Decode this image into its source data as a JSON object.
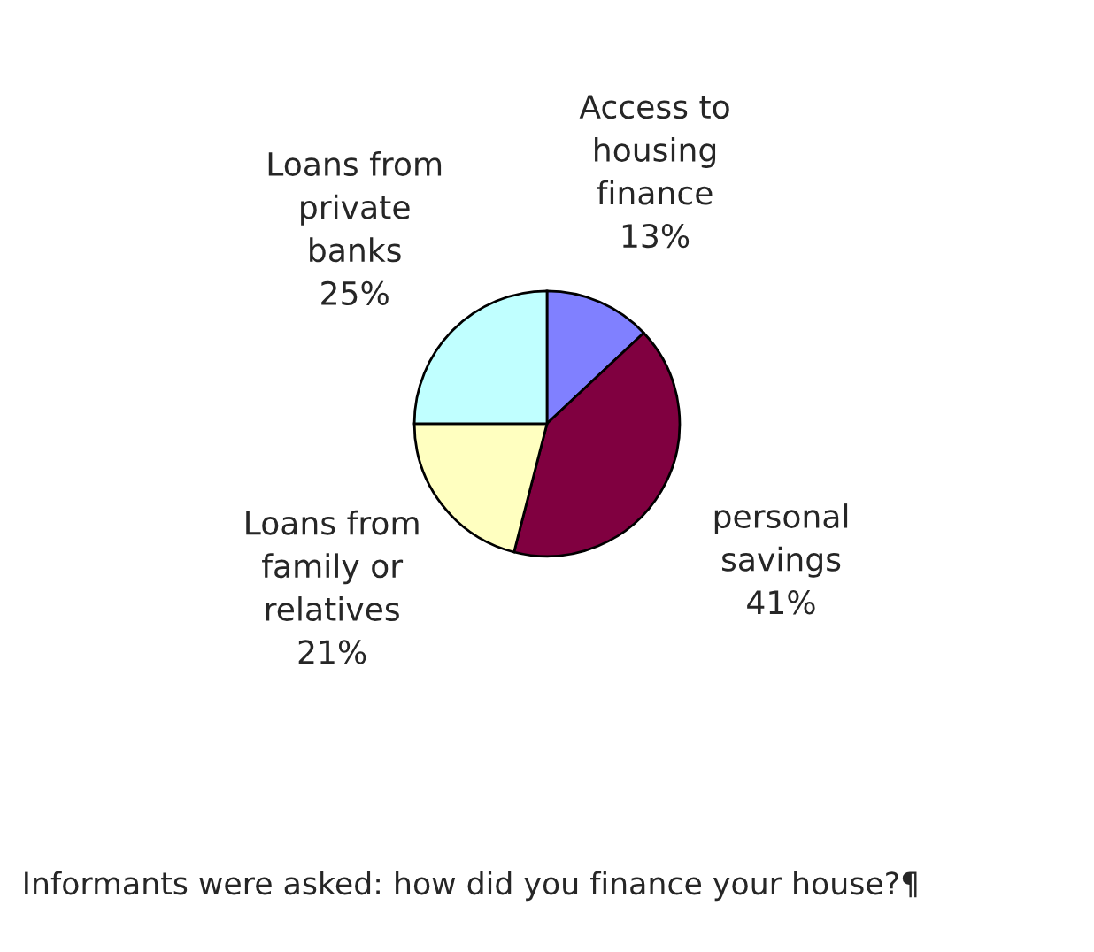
{
  "chart_data": {
    "type": "pie",
    "categories": [
      "Access to\nhousing\nfinance",
      "personal\nsavings",
      "Loans from\nfamily or\nrelatives",
      "Loans from\nprivate\nbanks"
    ],
    "values": [
      13,
      41,
      21,
      25
    ],
    "colors": [
      "#8080ff",
      "#800040",
      "#ffffc0",
      "#c0ffff"
    ],
    "value_labels": [
      "13%",
      "41%",
      "21%",
      "25%"
    ],
    "annotations": [
      "Informants were asked: how did you finance your house?¶"
    ]
  }
}
